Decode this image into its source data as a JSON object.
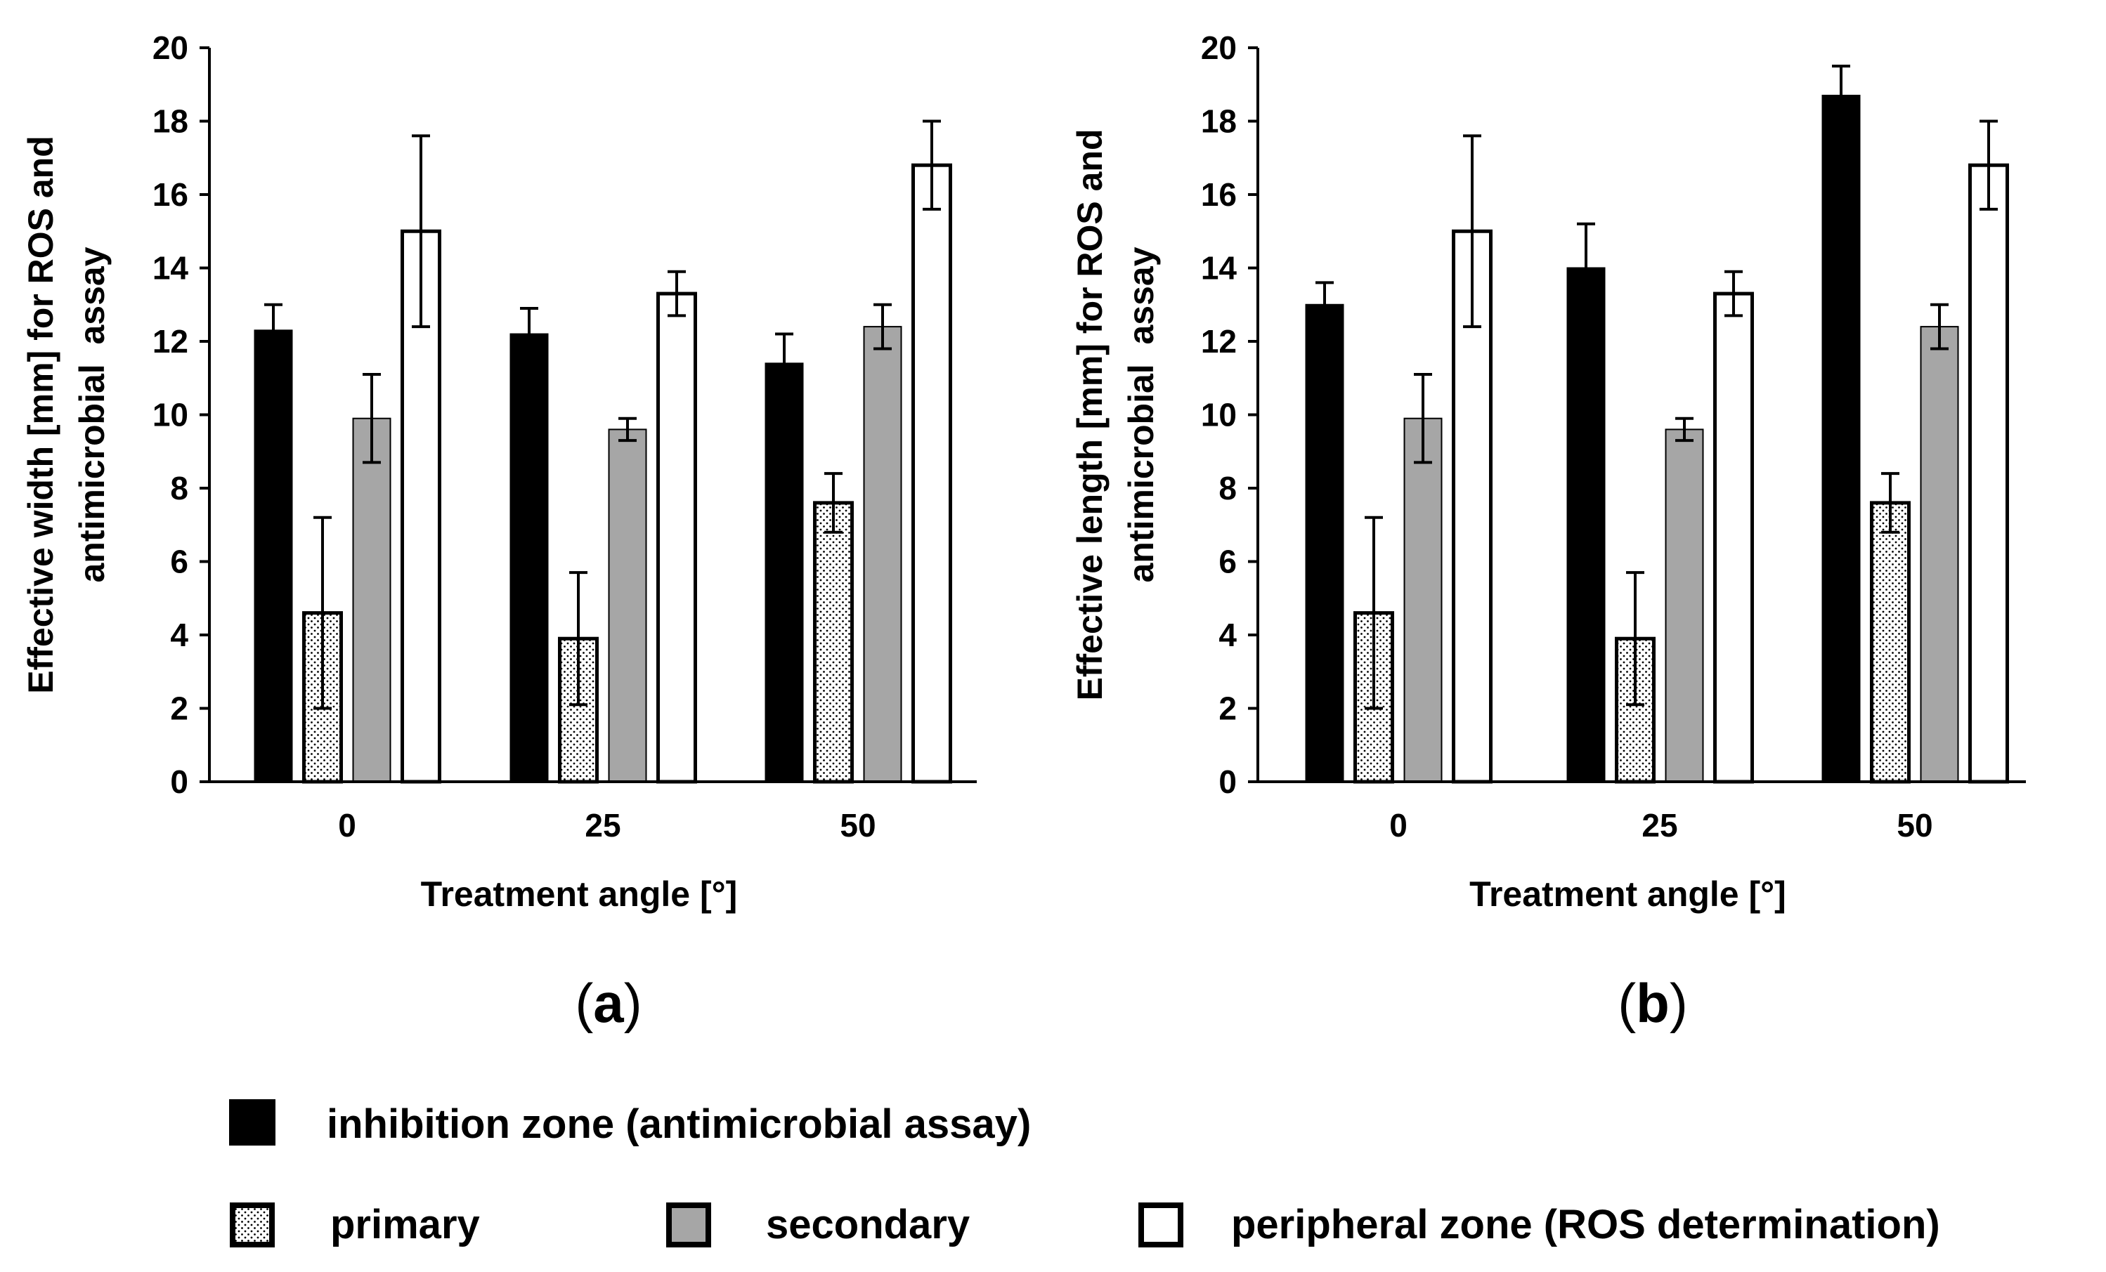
{
  "chart_data": [
    {
      "type": "bar",
      "panel_label": "a",
      "xlabel": "Treatment angle [°]",
      "ylabel_lines": [
        "Effective width [mm] for ROS and",
        "antimicrobial  assay"
      ],
      "ylim": [
        0,
        20
      ],
      "yticks": [
        "0",
        "2",
        "4",
        "6",
        "8",
        "10",
        "12",
        "14",
        "16",
        "18",
        "20"
      ],
      "categories": [
        "0",
        "25",
        "50"
      ],
      "series": [
        {
          "name": "inhibition zone (antimicrobial assay)",
          "values": [
            12.3,
            12.2,
            11.4
          ],
          "errors": [
            0.7,
            0.7,
            0.8
          ]
        },
        {
          "name": "primary",
          "values": [
            4.6,
            3.9,
            7.6
          ],
          "errors": [
            2.6,
            1.8,
            0.8
          ]
        },
        {
          "name": "secondary",
          "values": [
            9.9,
            9.6,
            12.4
          ],
          "errors": [
            1.2,
            0.3,
            0.6
          ]
        },
        {
          "name": "peripheral zone (ROS determination)",
          "values": [
            15.0,
            13.3,
            16.8
          ],
          "errors": [
            2.6,
            0.6,
            1.2
          ]
        }
      ]
    },
    {
      "type": "bar",
      "panel_label": "b",
      "xlabel": "Treatment angle [°]",
      "ylabel_lines": [
        "Effective length [mm] for ROS and",
        "antimicrobial  assay"
      ],
      "ylim": [
        0,
        20
      ],
      "yticks": [
        "0",
        "2",
        "4",
        "6",
        "8",
        "10",
        "12",
        "14",
        "16",
        "18",
        "20"
      ],
      "categories": [
        "0",
        "25",
        "50"
      ],
      "series": [
        {
          "name": "inhibition zone (antimicrobial assay)",
          "values": [
            13.0,
            14.0,
            18.7
          ],
          "errors": [
            0.6,
            1.2,
            0.8
          ]
        },
        {
          "name": "primary",
          "values": [
            4.6,
            3.9,
            7.6
          ],
          "errors": [
            2.6,
            1.8,
            0.8
          ]
        },
        {
          "name": "secondary",
          "values": [
            9.9,
            9.6,
            12.4
          ],
          "errors": [
            1.2,
            0.3,
            0.6
          ]
        },
        {
          "name": "peripheral zone (ROS determination)",
          "values": [
            15.0,
            13.3,
            16.8
          ],
          "errors": [
            2.6,
            0.6,
            1.2
          ]
        }
      ]
    }
  ],
  "legend": {
    "items": [
      {
        "label": "inhibition zone (antimicrobial assay)",
        "fill": "black"
      },
      {
        "label": "primary",
        "fill": "dotted"
      },
      {
        "label": "secondary",
        "fill": "gray"
      },
      {
        "label": "peripheral zone (ROS determination)",
        "fill": "white"
      }
    ]
  },
  "colors": {
    "inhibition": "#000000",
    "secondary": "#a6a6a6",
    "peripheral": "#ffffff",
    "primary_dots": "#000000"
  }
}
